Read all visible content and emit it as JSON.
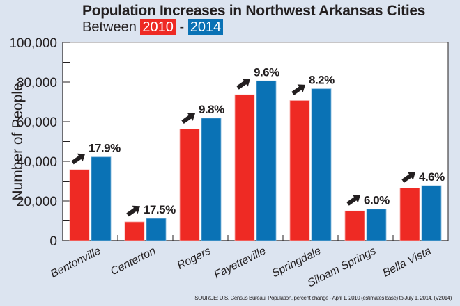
{
  "chart_data": {
    "type": "bar",
    "title": "Population Increases in Northwest Arkansas Cities",
    "subtitle_prefix": "Between",
    "subtitle_sep": "-",
    "categories": [
      "Bentonville",
      "Centerton",
      "Rogers",
      "Fayetteville",
      "Springdale",
      "Siloam Springs",
      "Bella Vista"
    ],
    "series": [
      {
        "name": "2010",
        "color": "#ee2a24",
        "values": [
          35800,
          9500,
          56300,
          73600,
          70700,
          15000,
          26500
        ]
      },
      {
        "name": "2014",
        "color": "#0a72b5",
        "values": [
          42200,
          11200,
          61800,
          80600,
          76600,
          15900,
          27700
        ]
      }
    ],
    "annotations": [
      "17.9%",
      "17.5%",
      "9.8%",
      "9.6%",
      "8.2%",
      "6.0%",
      "4.6%"
    ],
    "xlabel": "",
    "ylabel": "Number of People",
    "ylim": [
      0,
      100000
    ],
    "yticks": [
      "0",
      "20,000",
      "40,000",
      "60,000",
      "80,000",
      "100,000"
    ],
    "ytick_values": [
      0,
      20000,
      40000,
      60000,
      80000,
      100000
    ],
    "grid": false,
    "source": "SOURCE: U.S. Census Bureau. Population, percent change - April 1, 2010 (estimates base) to July 1, 2014, (V2014)"
  }
}
